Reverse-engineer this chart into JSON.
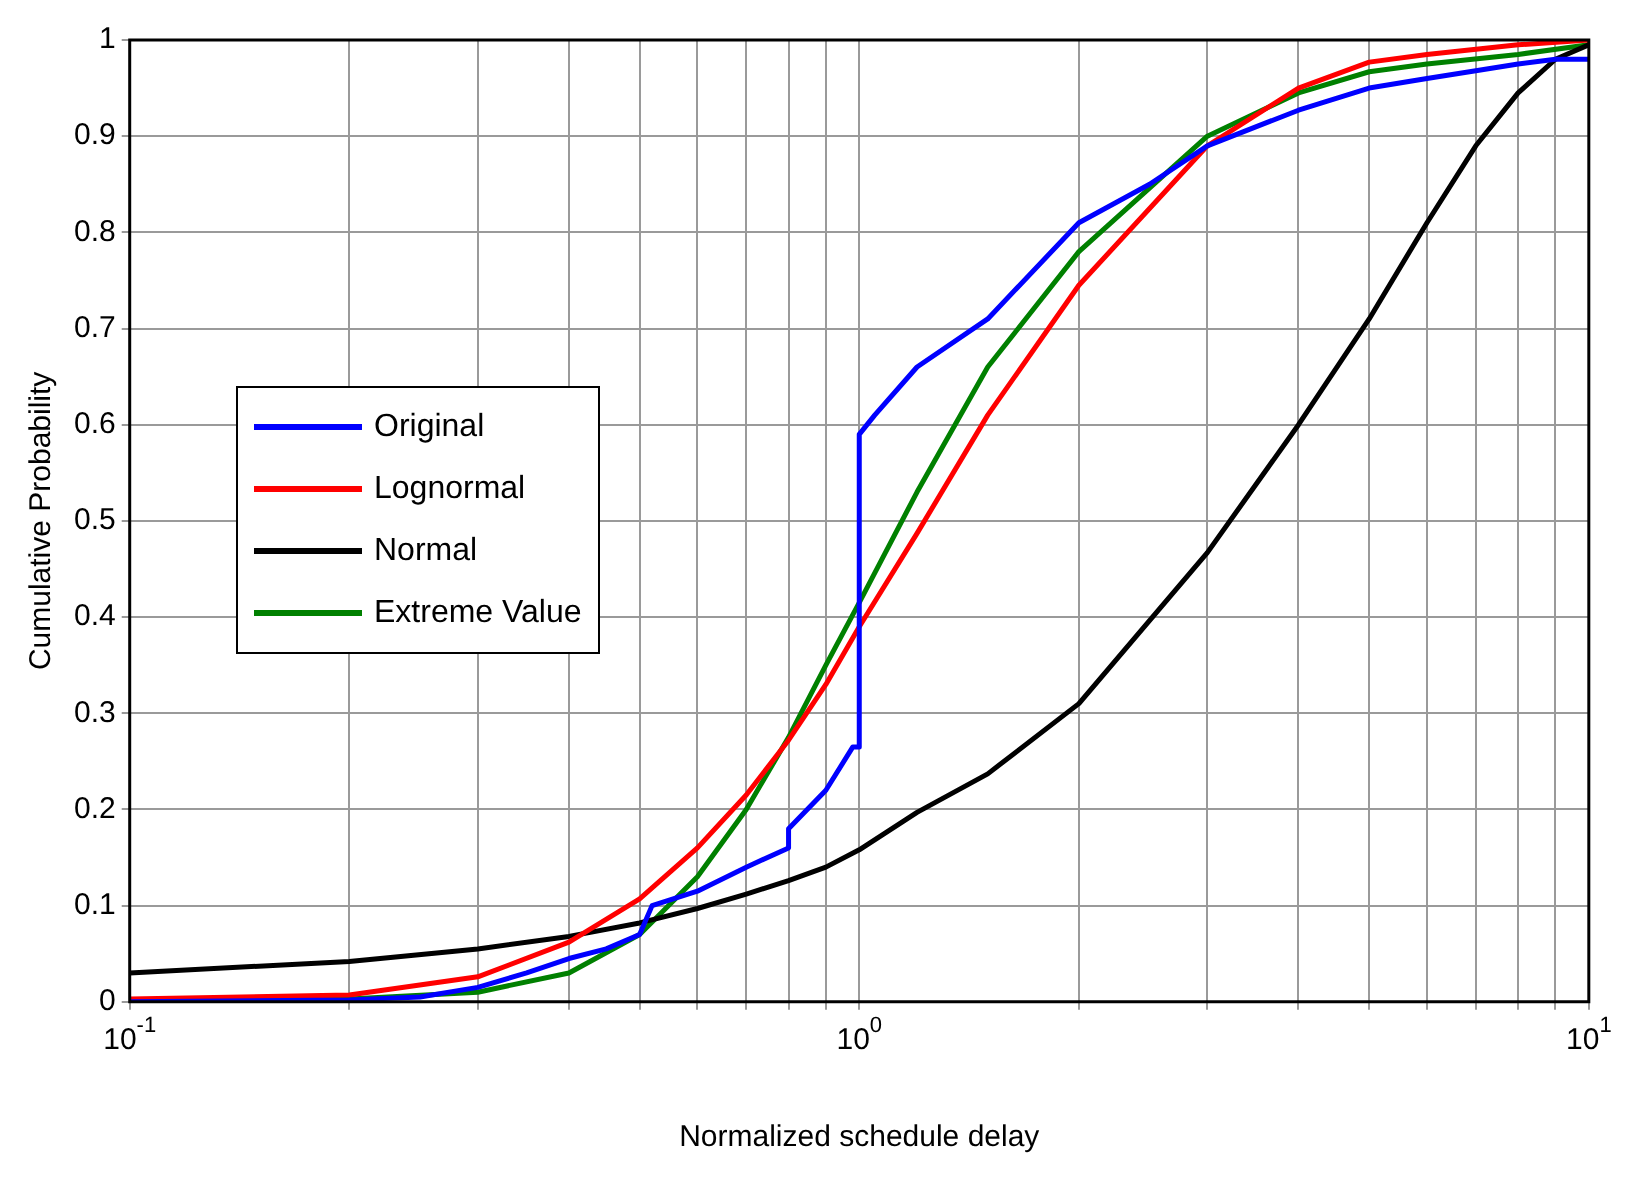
{
  "chart_data": {
    "type": "line",
    "xlabel": "Normalized schedule delay",
    "ylabel": "Cumulative Probability",
    "log": "x",
    "xlim": [
      0.1,
      10
    ],
    "ylim": [
      0,
      1
    ],
    "xticks": [
      {
        "value": 0.1,
        "label": "10$^{-1}$"
      },
      {
        "value": 0.2,
        "label": null
      },
      {
        "value": 0.3,
        "label": null
      },
      {
        "value": 0.4,
        "label": null
      },
      {
        "value": 0.5,
        "label": null
      },
      {
        "value": 0.6,
        "label": null
      },
      {
        "value": 0.7,
        "label": null
      },
      {
        "value": 0.8,
        "label": null
      },
      {
        "value": 0.9,
        "label": null
      },
      {
        "value": 1,
        "label": "10$^{0}$"
      },
      {
        "value": 2,
        "label": null
      },
      {
        "value": 3,
        "label": null
      },
      {
        "value": 4,
        "label": null
      },
      {
        "value": 5,
        "label": null
      },
      {
        "value": 6,
        "label": null
      },
      {
        "value": 7,
        "label": null
      },
      {
        "value": 8,
        "label": null
      },
      {
        "value": 9,
        "label": null
      },
      {
        "value": 10,
        "label": "10$^{1}$"
      }
    ],
    "yticks": [
      0,
      0.1,
      0.2,
      0.3,
      0.4,
      0.5,
      0.6,
      0.7,
      0.8,
      0.9,
      1
    ],
    "grid": true,
    "legend": "left",
    "marker": "none",
    "line_style": "solid",
    "series": [
      {
        "name": "Original",
        "color": "#0000ff",
        "type": "step",
        "x": [
          0.1,
          0.2,
          0.25,
          0.3,
          0.35,
          0.4,
          0.45,
          0.5,
          0.52,
          0.6,
          0.7,
          0.8,
          0.8,
          0.9,
          0.98,
          1,
          1,
          1.05,
          1.2,
          1.5,
          2,
          2.5,
          3,
          4,
          5,
          6,
          7,
          8,
          9,
          10
        ],
        "values": [
          0,
          0.002,
          0.005,
          0.015,
          0.03,
          0.045,
          0.055,
          0.07,
          0.1,
          0.115,
          0.14,
          0.16,
          0.18,
          0.22,
          0.265,
          0.265,
          0.59,
          0.61,
          0.66,
          0.71,
          0.81,
          0.85,
          0.89,
          0.927,
          0.95,
          0.96,
          0.968,
          0.975,
          0.98,
          0.98
        ]
      },
      {
        "name": "Lognormal",
        "color": "#ff0000",
        "x": [
          0.1,
          0.2,
          0.3,
          0.4,
          0.5,
          0.6,
          0.7,
          0.8,
          0.9,
          1,
          1.2,
          1.5,
          2,
          3,
          4,
          5,
          6,
          8,
          10
        ],
        "values": [
          0.003,
          0.007,
          0.026,
          0.062,
          0.107,
          0.16,
          0.215,
          0.272,
          0.33,
          0.39,
          0.487,
          0.61,
          0.745,
          0.89,
          0.95,
          0.977,
          0.985,
          0.995,
          1
        ]
      },
      {
        "name": "Normal",
        "color": "#000000",
        "x": [
          0.1,
          0.2,
          0.3,
          0.4,
          0.5,
          0.6,
          0.7,
          0.8,
          0.9,
          1,
          1.2,
          1.5,
          2,
          3,
          4,
          5,
          6,
          7,
          8,
          9,
          10
        ],
        "values": [
          0.03,
          0.042,
          0.055,
          0.068,
          0.082,
          0.097,
          0.112,
          0.126,
          0.14,
          0.158,
          0.197,
          0.237,
          0.31,
          0.467,
          0.6,
          0.71,
          0.81,
          0.89,
          0.945,
          0.98,
          0.995
        ]
      },
      {
        "name": "Extreme Value",
        "color": "#008000",
        "x": [
          0.1,
          0.2,
          0.3,
          0.4,
          0.5,
          0.6,
          0.7,
          0.8,
          0.9,
          1,
          1.2,
          1.5,
          2,
          3,
          4,
          5,
          6,
          8,
          10
        ],
        "values": [
          0.002,
          0.003,
          0.01,
          0.03,
          0.07,
          0.13,
          0.2,
          0.275,
          0.35,
          0.415,
          0.53,
          0.66,
          0.78,
          0.9,
          0.945,
          0.967,
          0.975,
          0.985,
          0.995
        ]
      }
    ]
  }
}
